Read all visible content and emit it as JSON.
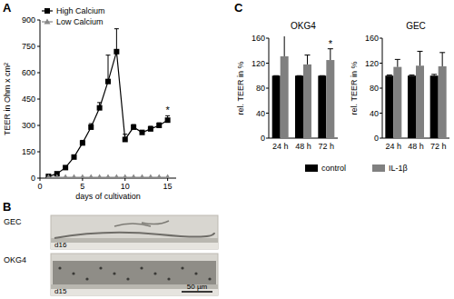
{
  "chart_data": [
    {
      "type": "line",
      "x": [
        1,
        2,
        3,
        4,
        5,
        6,
        7,
        8,
        9,
        10,
        11,
        12,
        13,
        14,
        15
      ],
      "xlim": [
        0,
        16
      ],
      "xticks": [
        0,
        5,
        10,
        15
      ],
      "ylim": [
        0,
        900
      ],
      "yticks": [
        0,
        150,
        300,
        450,
        600,
        750,
        900
      ],
      "x_label": "days of cultivation",
      "y_label": "TEER in Ohm x cm²",
      "legend": "upper left",
      "series": [
        {
          "name": "High Calcium",
          "color": "#000000",
          "marker": "square",
          "line_style": "solid",
          "values": [
            10,
            25,
            60,
            120,
            200,
            290,
            400,
            550,
            720,
            220,
            290,
            260,
            280,
            300,
            330
          ],
          "errors": [
            3,
            5,
            8,
            10,
            15,
            20,
            30,
            150,
            130,
            30,
            15,
            12,
            15,
            15,
            25
          ]
        },
        {
          "name": "Low Calcium",
          "color": "#888888",
          "marker": "triangle",
          "line_style": "solid",
          "values": [
            5,
            5,
            5,
            5,
            5,
            5,
            5,
            5,
            5,
            5,
            5,
            5,
            5,
            5,
            5
          ]
        }
      ],
      "annotations": [
        {
          "x": 15,
          "text": "*"
        }
      ]
    },
    {
      "type": "bar",
      "title": "OKG4",
      "categories": [
        "24 h",
        "48 h",
        "72 h"
      ],
      "ylim": [
        0,
        160
      ],
      "yticks": [
        0,
        40,
        80,
        120,
        160
      ],
      "y_label": "rel. TEER in %",
      "legend": "bottom",
      "series": [
        {
          "name": "control",
          "color": "#000000",
          "values": [
            100,
            100,
            100
          ],
          "errors": [
            0,
            0,
            0
          ]
        },
        {
          "name": "IL-1β",
          "color": "#808080",
          "values": [
            131,
            118,
            125
          ],
          "errors": [
            45,
            15,
            18
          ]
        }
      ],
      "annotations": [
        {
          "x": "72 h",
          "text": "*"
        }
      ]
    },
    {
      "type": "bar",
      "title": "GEC",
      "categories": [
        "24 h",
        "48 h",
        "72 h"
      ],
      "ylim": [
        0,
        160
      ],
      "yticks": [
        0,
        40,
        80,
        120,
        160
      ],
      "y_label": "rel. TEER in %",
      "series": [
        {
          "color": "#000000",
          "values": [
            100,
            100,
            100
          ],
          "errors": [
            1,
            1,
            2
          ]
        },
        {
          "color": "#808080",
          "values": [
            114,
            116,
            115
          ],
          "errors": [
            12,
            23,
            22
          ]
        }
      ]
    }
  ],
  "panel_labels": [
    "A",
    "B",
    "C"
  ],
  "images": [
    {
      "label": "GEC",
      "day": "d16"
    },
    {
      "label": "OKG4",
      "day": "d15"
    }
  ],
  "scale_bar": "50 µm"
}
